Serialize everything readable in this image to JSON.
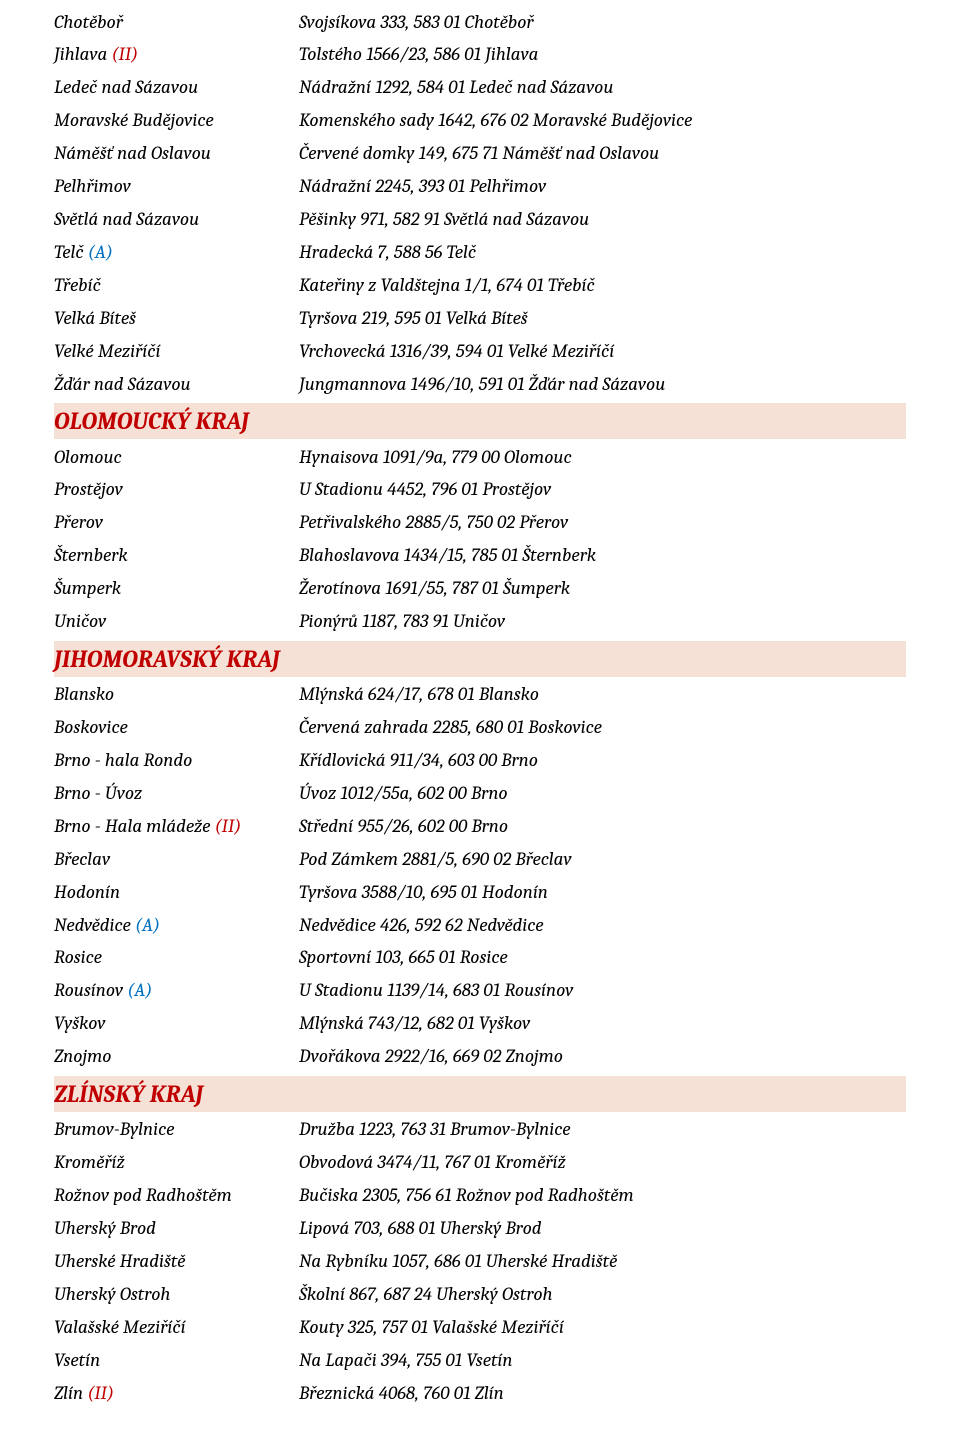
{
  "colors": {
    "section_bg": "#f6e1d7",
    "section_text": "#c00000",
    "tag_ii": "#c00000",
    "tag_a": "#0070c0",
    "text": "#000000",
    "page_bg": "#ffffff"
  },
  "tags": {
    "ii": "(II)",
    "a": "(A)"
  },
  "sections": [
    {
      "header": null,
      "rows": [
        {
          "left": "Chotěboř",
          "tag": null,
          "right": "Svojsíkova 333, 583 01 Chotěboř"
        },
        {
          "left": "Jihlava",
          "tag": "ii",
          "right": "Tolstého 1566/23, 586 01 Jihlava"
        },
        {
          "left": "Ledeč nad Sázavou",
          "tag": null,
          "right": "Nádražní 1292, 584 01 Ledeč nad Sázavou"
        },
        {
          "left": "Moravské Budějovice",
          "tag": null,
          "right": "Komenského sady 1642, 676 02 Moravské Budějovice"
        },
        {
          "left": "Náměšť nad Oslavou",
          "tag": null,
          "right": "Červené domky 149, 675 71 Náměšť nad Oslavou"
        },
        {
          "left": "Pelhřimov",
          "tag": null,
          "right": "Nádražní 2245, 393 01 Pelhřimov"
        },
        {
          "left": "Světlá nad Sázavou",
          "tag": null,
          "right": "Pěšinky 971, 582 91 Světlá nad Sázavou"
        },
        {
          "left": "Telč",
          "tag": "a",
          "right": "Hradecká 7, 588 56 Telč"
        },
        {
          "left": "Třebíč",
          "tag": null,
          "right": "Kateřiny z Valdštejna 1/1, 674 01 Třebíč"
        },
        {
          "left": "Velká Bíteš",
          "tag": null,
          "right": "Tyršova 219, 595 01 Velká Bíteš"
        },
        {
          "left": "Velké Meziříčí",
          "tag": null,
          "right": "Vrchovecká 1316/39, 594 01 Velké Meziříčí"
        },
        {
          "left": "Žďár nad Sázavou",
          "tag": null,
          "right": "Jungmannova 1496/10, 591 01 Žďár nad Sázavou"
        }
      ]
    },
    {
      "header": "OLOMOUCKÝ KRAJ",
      "rows": [
        {
          "left": "Olomouc",
          "tag": null,
          "right": "Hynaisova 1091/9a, 779 00 Olomouc"
        },
        {
          "left": "Prostějov",
          "tag": null,
          "right": "U Stadionu 4452, 796 01 Prostějov"
        },
        {
          "left": "Přerov",
          "tag": null,
          "right": "Petřivalského 2885/5, 750 02 Přerov"
        },
        {
          "left": "Šternberk",
          "tag": null,
          "right": "Blahoslavova 1434/15, 785 01 Šternberk"
        },
        {
          "left": "Šumperk",
          "tag": null,
          "right": "Žerotínova 1691/55, 787 01 Šumperk"
        },
        {
          "left": "Uničov",
          "tag": null,
          "right": "Pionýrů 1187, 783 91 Uničov"
        }
      ]
    },
    {
      "header": "JIHOMORAVSKÝ KRAJ",
      "rows": [
        {
          "left": "Blansko",
          "tag": null,
          "right": "Mlýnská 624/17, 678 01 Blansko"
        },
        {
          "left": "Boskovice",
          "tag": null,
          "right": "Červená zahrada 2285, 680 01 Boskovice"
        },
        {
          "left": "Brno - hala Rondo",
          "tag": null,
          "right": "Křídlovická 911/34, 603 00 Brno"
        },
        {
          "left": "Brno - Úvoz",
          "tag": null,
          "right": "Úvoz 1012/55a, 602 00 Brno"
        },
        {
          "left": "Brno - Hala mládeže",
          "tag": "ii",
          "right": "Střední 955/26, 602 00 Brno"
        },
        {
          "left": "Břeclav",
          "tag": null,
          "right": "Pod Zámkem 2881/5, 690 02 Břeclav"
        },
        {
          "left": "Hodonín",
          "tag": null,
          "right": "Tyršova 3588/10, 695 01 Hodonín"
        },
        {
          "left": "Nedvědice",
          "tag": "a",
          "right": "Nedvědice 426, 592 62 Nedvědice"
        },
        {
          "left": "Rosice",
          "tag": null,
          "right": "Sportovní 103, 665 01 Rosice"
        },
        {
          "left": "Rousínov",
          "tag": "a",
          "right": "U Stadionu 1139/14, 683 01 Rousínov"
        },
        {
          "left": "Vyškov",
          "tag": null,
          "right": "Mlýnská 743/12, 682 01 Vyškov"
        },
        {
          "left": "Znojmo",
          "tag": null,
          "right": "Dvořákova 2922/16, 669 02 Znojmo"
        }
      ]
    },
    {
      "header": "ZLÍNSKÝ KRAJ",
      "rows": [
        {
          "left": "Brumov-Bylnice",
          "tag": null,
          "right": "Družba 1223, 763 31 Brumov-Bylnice"
        },
        {
          "left": "Kroměříž",
          "tag": null,
          "right": "Obvodová 3474/11, 767 01 Kroměříž"
        },
        {
          "left": "Rožnov pod Radhoštěm",
          "tag": null,
          "right": "Bučiska 2305, 756 61 Rožnov pod Radhoštěm"
        },
        {
          "left": "Uherský Brod",
          "tag": null,
          "right": "Lipová 703, 688 01 Uherský Brod"
        },
        {
          "left": "Uherské Hradiště",
          "tag": null,
          "right": "Na Rybníku 1057, 686 01 Uherské Hradiště"
        },
        {
          "left": "Uherský Ostroh",
          "tag": null,
          "right": "Školní 867, 687 24 Uherský Ostroh"
        },
        {
          "left": "Valašské Meziříčí",
          "tag": null,
          "right": "Kouty 325, 757 01 Valašské Meziříčí"
        },
        {
          "left": "Vsetín",
          "tag": null,
          "right": "Na Lapači 394, 755 01 Vsetín"
        },
        {
          "left": "Zlín",
          "tag": "ii",
          "right": "Březnická 4068, 760 01 Zlín"
        }
      ]
    }
  ]
}
